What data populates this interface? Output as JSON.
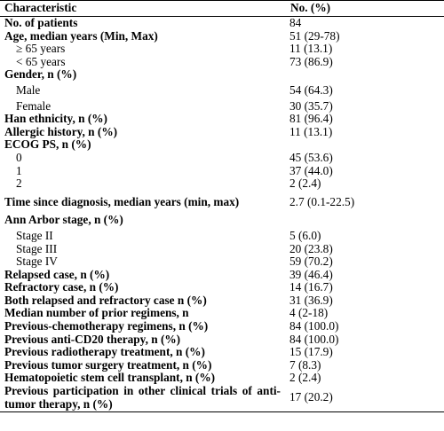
{
  "table": {
    "headers": [
      "Characteristic",
      "No. (%)"
    ],
    "rows": [
      {
        "label": "No. of patients",
        "value": "84"
      },
      {
        "label": "Age, median years (Min, Max)",
        "value": "51 (29-78)"
      },
      {
        "label": "≥ 65 years",
        "value": "11 (13.1)"
      },
      {
        "label": "< 65 years",
        "value": "73 (86.9)"
      },
      {
        "label": "Gender, n (%)",
        "value": ""
      },
      {
        "label": "Male",
        "value": "54 (64.3)"
      },
      {
        "label": "Female",
        "value": "30 (35.7)"
      },
      {
        "label": "Han ethnicity, n (%)",
        "value": "81 (96.4)"
      },
      {
        "label": "Allergic history, n (%)",
        "value": "11 (13.1)"
      },
      {
        "label": "ECOG PS, n (%)",
        "value": ""
      },
      {
        "label": "0",
        "value": "45 (53.6)"
      },
      {
        "label": "1",
        "value": "37 (44.0)"
      },
      {
        "label": "2",
        "value": "2 (2.4)"
      },
      {
        "label": "Time since diagnosis, median years (min, max)",
        "value": "2.7 (0.1-22.5)"
      },
      {
        "label": "Ann Arbor stage, n (%)",
        "value": ""
      },
      {
        "label": "Stage II",
        "value": "5 (6.0)"
      },
      {
        "label": "Stage III",
        "value": "20 (23.8)"
      },
      {
        "label": "Stage IV",
        "value": "59 (70.2)"
      },
      {
        "label": "Relapsed case, n (%)",
        "value": "39 (46.4)"
      },
      {
        "label": "Refractory case, n (%)",
        "value": "14 (16.7)"
      },
      {
        "label": "Both relapsed and refractory case n (%)",
        "value": "31 (36.9)"
      },
      {
        "label": "Median number of prior regimens, n",
        "value": "4 (2-18)"
      },
      {
        "label": "Previous-chemotherapy regimens, n (%)",
        "value": "84 (100.0)"
      },
      {
        "label": "Previous anti-CD20 therapy, n (%)",
        "value": "84 (100.0)"
      },
      {
        "label": "Previous radiotherapy treatment, n (%)",
        "value": "15 (17.9)"
      },
      {
        "label": "Previous tumor surgery treatment, n (%)",
        "value": "7 (8.3)"
      },
      {
        "label": "Hematopoietic stem cell transplant, n (%)",
        "value": "2 (2.4)"
      },
      {
        "label": "Previous participation in other clinical trials of anti-tumor therapy, n (%)",
        "value": "17 (20.2)"
      }
    ]
  }
}
